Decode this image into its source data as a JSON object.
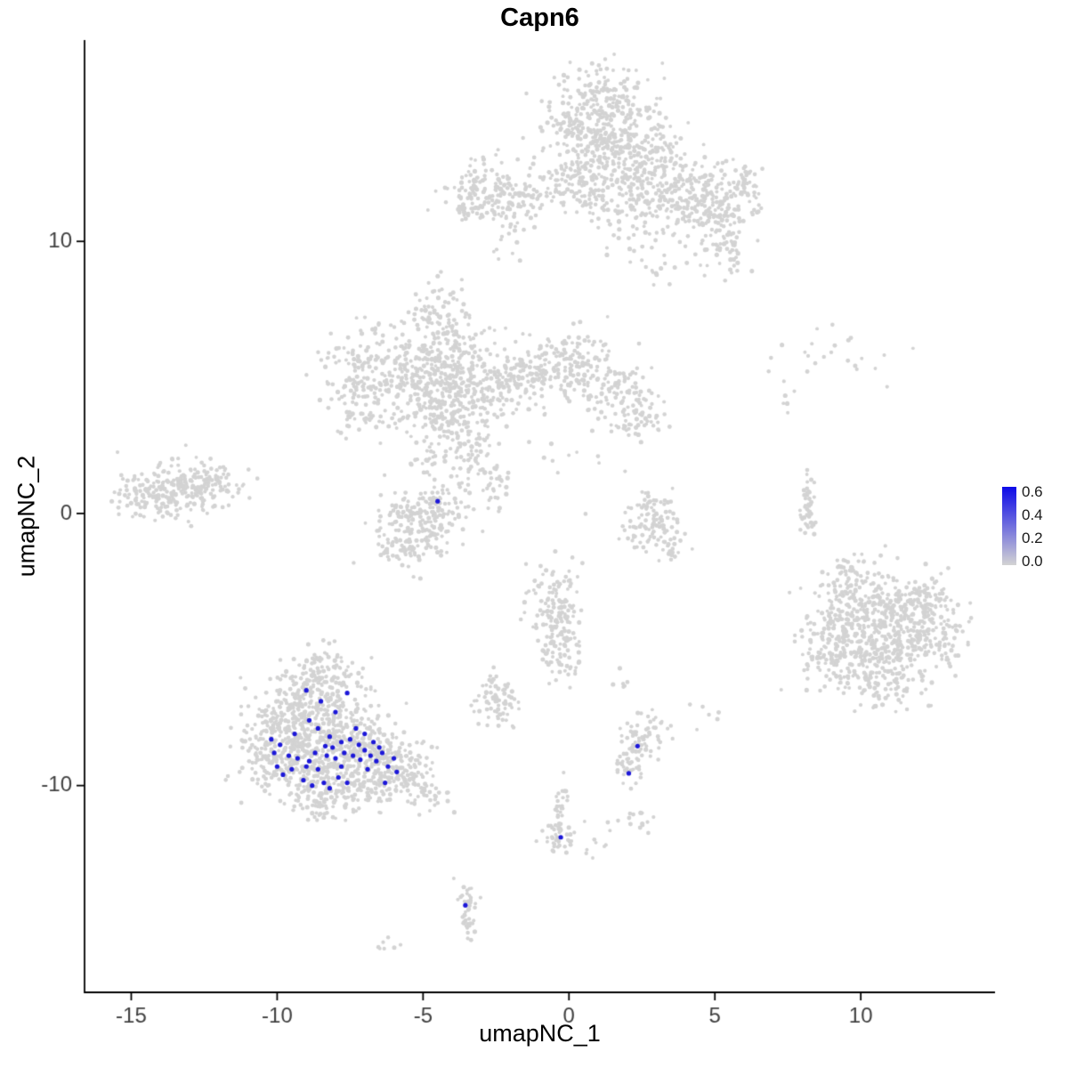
{
  "chart_data": {
    "type": "scatter",
    "title": "Capn6",
    "xlabel": "umapNC_1",
    "ylabel": "umapNC_2",
    "xlim": [
      -16.6,
      14.6
    ],
    "ylim": [
      -17.6,
      17.4
    ],
    "x_ticks": [
      -15,
      -10,
      -5,
      0,
      5,
      10
    ],
    "y_ticks": [
      -10,
      0,
      10
    ],
    "grid": false,
    "point_color_low": "#d3d3d3",
    "point_color_high": "#1c17d8",
    "seed": 42,
    "legend": {
      "position": "right",
      "values": [
        0.6,
        0.4,
        0.2,
        0.0
      ],
      "scale_min": -0.03,
      "scale_max": 0.65,
      "color_low": "#d3d3d3",
      "color_high": "#0d0ae8"
    },
    "cluster_format": [
      "center_x",
      "center_y",
      "sd_x",
      "sd_y",
      "n_points"
    ],
    "background_clusters": [
      [
        1.2,
        14.9,
        1.0,
        0.9,
        260
      ],
      [
        0.6,
        13.4,
        0.8,
        0.7,
        140
      ],
      [
        1.9,
        13.3,
        0.8,
        0.7,
        150
      ],
      [
        2.9,
        12.3,
        0.8,
        0.7,
        140
      ],
      [
        4.0,
        11.6,
        0.8,
        0.7,
        130
      ],
      [
        5.0,
        11.2,
        0.6,
        0.8,
        110
      ],
      [
        5.5,
        9.9,
        0.35,
        0.6,
        45
      ],
      [
        5.9,
        11.9,
        0.4,
        0.6,
        50
      ],
      [
        -0.3,
        12.0,
        0.7,
        0.6,
        80
      ],
      [
        0.9,
        11.4,
        0.5,
        0.5,
        40
      ],
      [
        2.2,
        10.6,
        0.5,
        0.5,
        30
      ],
      [
        3.1,
        9.4,
        0.35,
        0.45,
        18
      ],
      [
        -2.9,
        11.7,
        0.65,
        0.6,
        150
      ],
      [
        -1.7,
        11.4,
        0.45,
        0.4,
        40
      ],
      [
        -2.2,
        10.2,
        0.3,
        0.4,
        12
      ],
      [
        -4.6,
        7.6,
        0.4,
        0.45,
        45
      ],
      [
        -4.0,
        6.2,
        0.65,
        0.7,
        120
      ],
      [
        -4.9,
        5.0,
        0.8,
        0.75,
        190
      ],
      [
        -4.2,
        3.6,
        0.9,
        0.7,
        170
      ],
      [
        -6.8,
        5.4,
        0.7,
        0.75,
        140
      ],
      [
        -7.2,
        3.9,
        0.5,
        0.5,
        60
      ],
      [
        -2.8,
        4.7,
        0.8,
        0.6,
        130
      ],
      [
        -1.3,
        5.1,
        0.8,
        0.6,
        120
      ],
      [
        0.2,
        5.5,
        0.7,
        0.65,
        120
      ],
      [
        1.5,
        4.5,
        0.7,
        0.6,
        90
      ],
      [
        2.4,
        3.6,
        0.5,
        0.5,
        55
      ],
      [
        -3.4,
        2.2,
        0.35,
        0.6,
        45
      ],
      [
        -2.6,
        1.0,
        0.3,
        0.5,
        35
      ],
      [
        -5.0,
        1.9,
        0.3,
        0.35,
        20
      ],
      [
        -13.5,
        0.9,
        0.85,
        0.55,
        190
      ],
      [
        -12.4,
        1.2,
        0.5,
        0.4,
        70
      ],
      [
        -14.5,
        0.5,
        0.4,
        0.35,
        40
      ],
      [
        -5.2,
        -0.4,
        0.7,
        0.65,
        170
      ],
      [
        -4.4,
        0.4,
        0.4,
        0.4,
        50
      ],
      [
        -5.8,
        -1.4,
        0.45,
        0.3,
        35
      ],
      [
        2.6,
        -0.3,
        0.35,
        0.5,
        55
      ],
      [
        3.3,
        -1.0,
        0.4,
        0.4,
        45
      ],
      [
        3.0,
        0.3,
        0.3,
        0.25,
        22
      ],
      [
        8.2,
        0.2,
        0.13,
        0.55,
        45
      ],
      [
        10.3,
        -3.4,
        1.0,
        0.8,
        220
      ],
      [
        11.5,
        -4.3,
        0.9,
        0.85,
        200
      ],
      [
        10.0,
        -5.3,
        0.9,
        0.75,
        170
      ],
      [
        12.4,
        -3.3,
        0.5,
        0.6,
        70
      ],
      [
        8.9,
        -4.7,
        0.5,
        0.7,
        80
      ],
      [
        11.1,
        -6.2,
        0.7,
        0.5,
        70
      ],
      [
        9.4,
        -2.4,
        0.45,
        0.45,
        45
      ],
      [
        12.9,
        -4.9,
        0.35,
        0.4,
        30
      ],
      [
        -0.5,
        -3.0,
        0.45,
        0.6,
        90
      ],
      [
        -0.4,
        -4.5,
        0.4,
        0.6,
        80
      ],
      [
        -0.1,
        -5.6,
        0.3,
        0.4,
        28
      ],
      [
        -2.5,
        -6.9,
        0.35,
        0.5,
        75
      ],
      [
        -8.6,
        -6.5,
        0.8,
        0.55,
        130
      ],
      [
        -9.4,
        -7.7,
        0.85,
        0.75,
        190
      ],
      [
        -7.8,
        -8.2,
        0.9,
        0.75,
        210
      ],
      [
        -9.9,
        -8.9,
        0.7,
        0.65,
        140
      ],
      [
        -8.6,
        -9.5,
        0.8,
        0.65,
        170
      ],
      [
        -6.6,
        -9.0,
        0.7,
        0.6,
        140
      ],
      [
        -5.6,
        -9.6,
        0.5,
        0.5,
        80
      ],
      [
        -7.2,
        -10.3,
        0.6,
        0.4,
        70
      ],
      [
        -8.8,
        -10.5,
        0.5,
        0.35,
        45
      ],
      [
        -8.3,
        -5.6,
        0.45,
        0.4,
        50
      ],
      [
        -4.9,
        -10.3,
        0.4,
        0.35,
        35
      ],
      [
        -10.6,
        -8.3,
        0.35,
        0.5,
        40
      ],
      [
        2.3,
        -8.5,
        0.4,
        0.45,
        60
      ],
      [
        2.0,
        -9.4,
        0.28,
        0.3,
        25
      ],
      [
        3.0,
        -7.9,
        0.25,
        0.25,
        10
      ],
      [
        -0.3,
        -10.9,
        0.13,
        0.55,
        30
      ],
      [
        -0.3,
        -11.9,
        0.3,
        0.3,
        40
      ],
      [
        1.0,
        -12.1,
        0.35,
        0.25,
        8
      ],
      [
        2.3,
        -11.4,
        0.3,
        0.25,
        14
      ],
      [
        -3.55,
        -14.3,
        0.18,
        0.4,
        32
      ],
      [
        -3.45,
        -15.2,
        0.15,
        0.3,
        14
      ],
      [
        -6.2,
        -15.8,
        0.25,
        0.15,
        7
      ],
      [
        8.8,
        5.7,
        1.3,
        0.5,
        22
      ],
      [
        7.3,
        4.3,
        0.5,
        0.4,
        7
      ],
      [
        0.8,
        1.8,
        0.9,
        0.8,
        10
      ],
      [
        4.8,
        -7.5,
        0.3,
        0.3,
        6
      ],
      [
        1.7,
        -6.3,
        0.3,
        0.3,
        6
      ]
    ],
    "expressing_points": [
      [
        -4.5,
        0.45
      ],
      [
        -9.9,
        -8.5
      ],
      [
        -9.6,
        -8.9
      ],
      [
        -9.3,
        -9.0
      ],
      [
        -9.0,
        -9.3
      ],
      [
        -8.7,
        -8.8
      ],
      [
        -8.6,
        -9.4
      ],
      [
        -8.3,
        -8.9
      ],
      [
        -8.1,
        -8.6
      ],
      [
        -8.0,
        -9.0
      ],
      [
        -7.8,
        -8.4
      ],
      [
        -7.7,
        -8.8
      ],
      [
        -7.5,
        -8.3
      ],
      [
        -7.4,
        -8.9
      ],
      [
        -7.2,
        -8.5
      ],
      [
        -7.0,
        -8.7
      ],
      [
        -6.8,
        -8.9
      ],
      [
        -6.6,
        -9.1
      ],
      [
        -6.4,
        -8.8
      ],
      [
        -6.2,
        -9.3
      ],
      [
        -6.0,
        -9.0
      ],
      [
        -9.8,
        -9.6
      ],
      [
        -9.1,
        -9.8
      ],
      [
        -8.8,
        -10.0
      ],
      [
        -8.4,
        -9.9
      ],
      [
        -8.2,
        -10.1
      ],
      [
        -7.9,
        -9.7
      ],
      [
        -7.6,
        -9.9
      ],
      [
        -8.6,
        -7.9
      ],
      [
        -8.9,
        -7.6
      ],
      [
        -9.4,
        -8.1
      ],
      [
        -10.1,
        -8.8
      ],
      [
        -10.0,
        -9.3
      ],
      [
        -7.3,
        -7.9
      ],
      [
        -7.0,
        -8.1
      ],
      [
        -6.7,
        -8.4
      ],
      [
        -8.0,
        -7.3
      ],
      [
        -8.5,
        -6.9
      ],
      [
        -7.6,
        -6.6
      ],
      [
        -9.0,
        -6.5
      ],
      [
        -6.3,
        -9.9
      ],
      [
        -5.9,
        -9.5
      ],
      [
        -8.2,
        -8.2
      ],
      [
        -7.8,
        -9.3
      ],
      [
        -8.9,
        -9.1
      ],
      [
        -9.5,
        -9.4
      ],
      [
        -6.9,
        -9.4
      ],
      [
        -6.5,
        -8.6
      ],
      [
        -10.2,
        -8.3
      ],
      [
        -8.35,
        -8.55
      ],
      [
        -7.15,
        -9.05
      ],
      [
        2.35,
        -8.55
      ],
      [
        2.05,
        -9.55
      ],
      [
        -0.28,
        -11.9
      ],
      [
        -3.55,
        -14.4
      ]
    ]
  }
}
